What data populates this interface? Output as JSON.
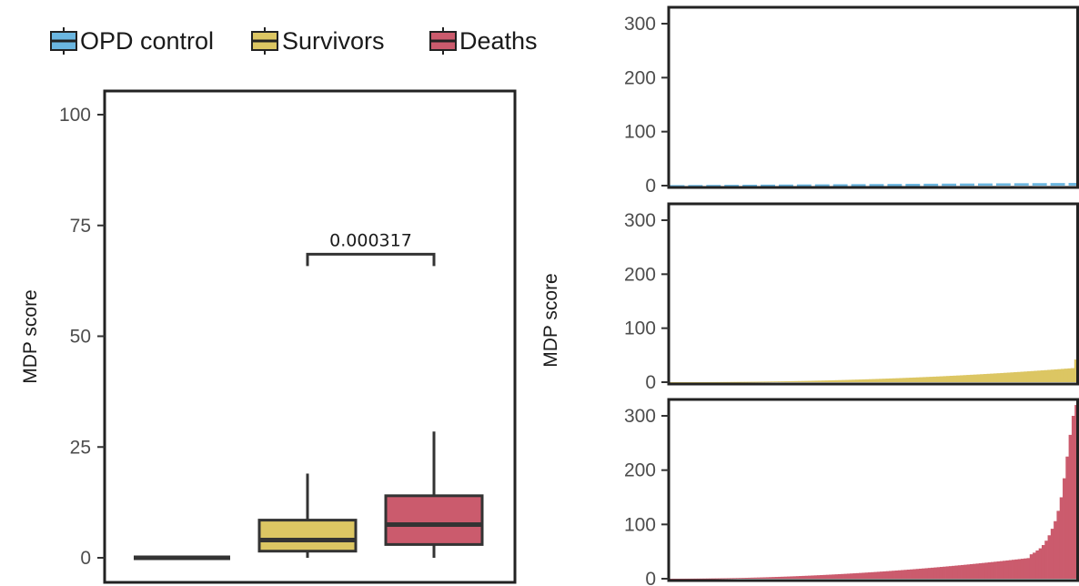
{
  "legend": [
    {
      "label": "OPD control",
      "color": "#6bb6e0"
    },
    {
      "label": "Survivors",
      "color": "#dcc663"
    },
    {
      "label": "Deaths",
      "color": "#cb5b6d"
    }
  ],
  "chart_data": [
    {
      "type": "box",
      "ylabel": "MDP score",
      "ylim": [
        0,
        100
      ],
      "yticks": [
        0,
        25,
        50,
        75,
        100
      ],
      "groups": [
        {
          "name": "OPD control",
          "color": "#6bb6e0",
          "min": 0,
          "q1": 0,
          "median": 0,
          "q3": 0,
          "max": 0
        },
        {
          "name": "Survivors",
          "color": "#dcc663",
          "min": 0,
          "q1": 1.5,
          "median": 4,
          "q3": 8.5,
          "max": 19
        },
        {
          "name": "Deaths",
          "color": "#cb5b6d",
          "min": 0,
          "q1": 3,
          "median": 7.5,
          "q3": 14,
          "max": 28.5
        }
      ],
      "comparison": {
        "from": "Survivors",
        "to": "Deaths",
        "label": "0.000317",
        "y": 68.5
      }
    },
    {
      "type": "bar",
      "ylabel": "MDP score",
      "ylim": [
        0,
        320
      ],
      "yticks": [
        0,
        100,
        200,
        300
      ],
      "panels": [
        {
          "name": "OPD control",
          "color": "#6bb6e0",
          "n": 45,
          "min": 1,
          "max": 5,
          "power": 1.0,
          "tail": [],
          "dashed": true
        },
        {
          "name": "Survivors",
          "color": "#dcc663",
          "n": 120,
          "min": 0,
          "max": 26,
          "power": 2.2,
          "tail": [
            42
          ]
        },
        {
          "name": "Deaths",
          "color": "#cb5b6d",
          "n": 120,
          "min": 0,
          "max": 38,
          "power": 2.0,
          "tail": [
            45,
            48,
            52,
            56,
            62,
            70,
            80,
            92,
            106,
            125,
            150,
            185,
            225,
            265,
            300,
            320
          ]
        }
      ]
    }
  ]
}
